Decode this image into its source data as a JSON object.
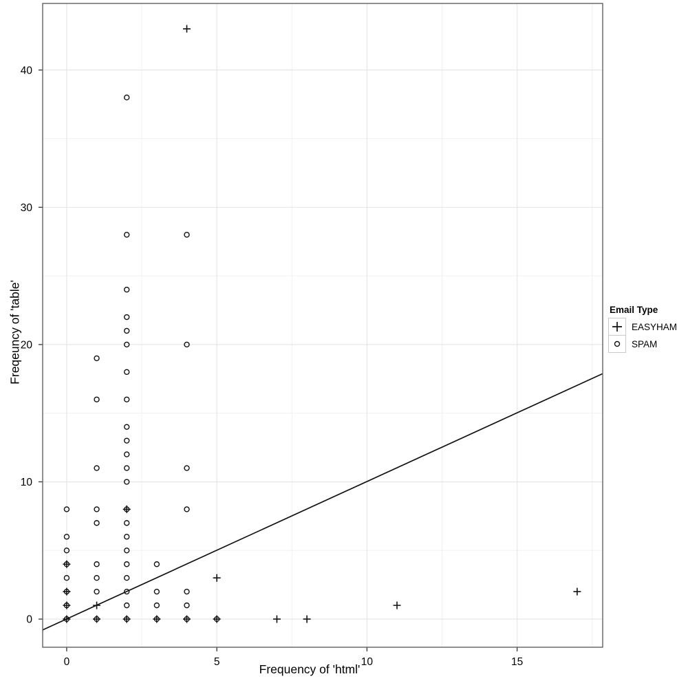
{
  "chart_data": {
    "type": "scatter",
    "title": "",
    "xlabel": "Frequency of 'html'",
    "ylabel": "Freqeuncy of 'table'",
    "xlim": [
      -0.8,
      17.85
    ],
    "ylim": [
      -2.05,
      44.85
    ],
    "x_major_ticks": [
      0,
      5,
      10,
      15
    ],
    "x_minor_gridlines": [
      2.5,
      7.5,
      12.5,
      17.5
    ],
    "y_major_ticks": [
      0,
      10,
      20,
      30,
      40
    ],
    "y_minor_gridlines": [
      5,
      15,
      25,
      35
    ],
    "grid": "major-and-minor",
    "legend_title": "Email Type",
    "legend_position": "right",
    "series": [
      {
        "name": "EASYHAM",
        "marker": "plus",
        "points": [
          [
            0,
            0
          ],
          [
            0,
            1
          ],
          [
            0,
            2
          ],
          [
            0,
            4
          ],
          [
            1,
            0
          ],
          [
            1,
            1
          ],
          [
            2,
            0
          ],
          [
            2,
            8
          ],
          [
            3,
            0
          ],
          [
            4,
            0
          ],
          [
            4,
            43
          ],
          [
            5,
            0
          ],
          [
            5,
            3
          ],
          [
            7,
            0
          ],
          [
            8,
            0
          ],
          [
            11,
            1
          ],
          [
            17,
            2
          ]
        ]
      },
      {
        "name": "SPAM",
        "marker": "circle",
        "points": [
          [
            0,
            0
          ],
          [
            0,
            1
          ],
          [
            0,
            2
          ],
          [
            0,
            3
          ],
          [
            0,
            4
          ],
          [
            0,
            5
          ],
          [
            0,
            6
          ],
          [
            0,
            8
          ],
          [
            1,
            0
          ],
          [
            1,
            2
          ],
          [
            1,
            3
          ],
          [
            1,
            4
          ],
          [
            1,
            7
          ],
          [
            1,
            8
          ],
          [
            1,
            11
          ],
          [
            1,
            16
          ],
          [
            1,
            19
          ],
          [
            2,
            0
          ],
          [
            2,
            1
          ],
          [
            2,
            2
          ],
          [
            2,
            3
          ],
          [
            2,
            4
          ],
          [
            2,
            5
          ],
          [
            2,
            6
          ],
          [
            2,
            7
          ],
          [
            2,
            8
          ],
          [
            2,
            10
          ],
          [
            2,
            11
          ],
          [
            2,
            12
          ],
          [
            2,
            13
          ],
          [
            2,
            14
          ],
          [
            2,
            16
          ],
          [
            2,
            18
          ],
          [
            2,
            20
          ],
          [
            2,
            21
          ],
          [
            2,
            22
          ],
          [
            2,
            24
          ],
          [
            2,
            28
          ],
          [
            2,
            38
          ],
          [
            3,
            0
          ],
          [
            3,
            1
          ],
          [
            3,
            2
          ],
          [
            3,
            4
          ],
          [
            4,
            0
          ],
          [
            4,
            1
          ],
          [
            4,
            2
          ],
          [
            4,
            8
          ],
          [
            4,
            11
          ],
          [
            4,
            20
          ],
          [
            4,
            28
          ],
          [
            5,
            0
          ]
        ]
      }
    ],
    "fit_line": {
      "x1": -0.8,
      "y1": -0.79,
      "x2": 17.85,
      "y2": 17.88
    },
    "colors": {
      "marker": "#111111",
      "fit_line": "#111111",
      "grid_major": "#e4e4e4",
      "grid_minor": "#f1f1f1",
      "panel_border": "#606060",
      "tick": "#333333",
      "text": "#000000",
      "legend_key_border": "#c9c9c9"
    }
  }
}
